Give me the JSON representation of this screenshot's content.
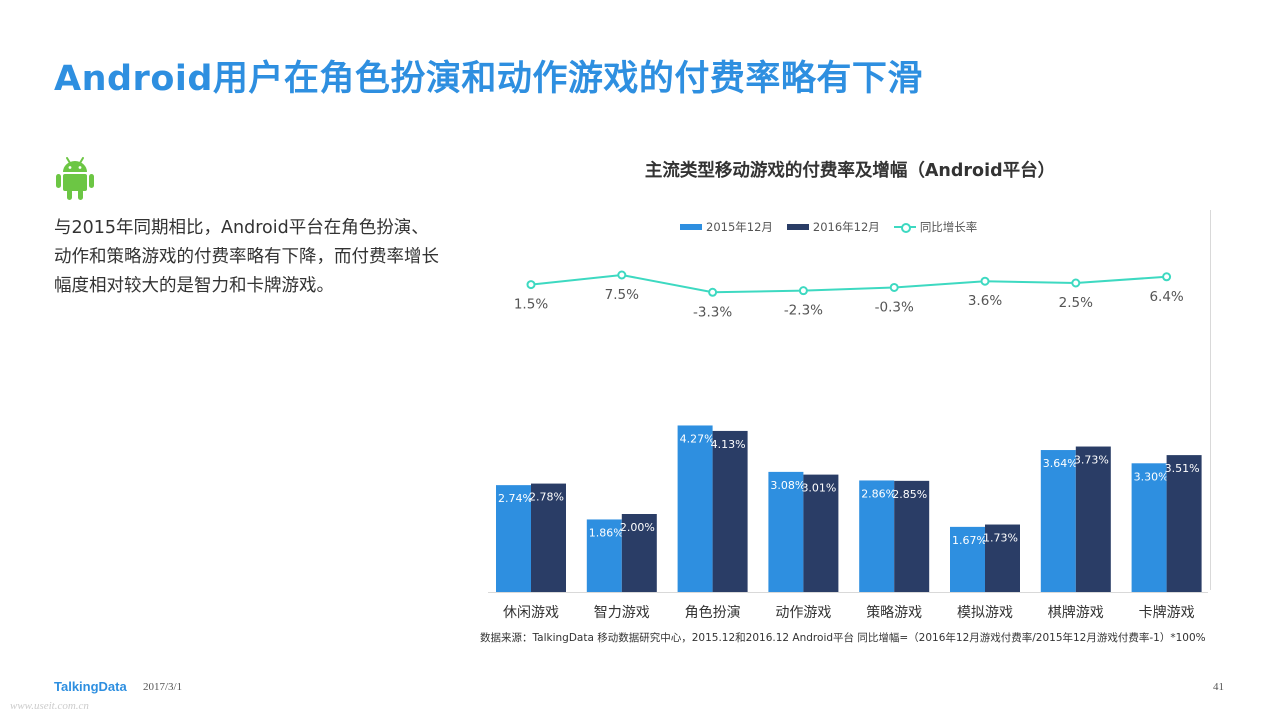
{
  "page": {
    "title": "Android用户在角色扮演和动作游戏的付费率略有下滑",
    "body_text": "与2015年同期相比，Android平台在角色扮演、动作和策略游戏的付费率略有下降，而付费率增长幅度相对较大的是智力和卡牌游戏。",
    "android_icon": "android-robot-icon",
    "source_note": "数据来源：TalkingData 移动数据研究中心，2015.12和2016.12 Android平台 同比增幅=（2016年12月游戏付费率/2015年12月游戏付费率-1）*100%",
    "brand": "TalkingData",
    "date": "2017/3/1",
    "page_number": "41",
    "watermark": "www.useit.com.cn"
  },
  "colors": {
    "title": "#2e8fe0",
    "series_2015": "#2e8fe0",
    "series_2016": "#2a3d66",
    "growth_line": "#3dd9c1",
    "android_green": "#6cc644"
  },
  "chart_data": {
    "type": "bar",
    "title": "主流类型移动游戏的付费率及增幅（Android平台）",
    "categories": [
      "休闲游戏",
      "智力游戏",
      "角色扮演",
      "动作游戏",
      "策略游戏",
      "模拟游戏",
      "棋牌游戏",
      "卡牌游戏"
    ],
    "series": [
      {
        "name": "2015年12月",
        "values": [
          2.74,
          1.86,
          4.27,
          3.08,
          2.86,
          1.67,
          3.64,
          3.3
        ],
        "labels": [
          "2.74%",
          "1.86%",
          "4.27%",
          "3.08%",
          "2.86%",
          "1.67%",
          "3.64%",
          "3.30%"
        ]
      },
      {
        "name": "2016年12月",
        "values": [
          2.78,
          2.0,
          4.13,
          3.01,
          2.85,
          1.73,
          3.73,
          3.51
        ],
        "labels": [
          "2.78%",
          "2.00%",
          "4.13%",
          "3.01%",
          "2.85%",
          "1.73%",
          "3.73%",
          "3.51%"
        ]
      }
    ],
    "line_series": {
      "name": "同比增长率",
      "values": [
        1.5,
        7.5,
        -3.3,
        -2.3,
        -0.3,
        3.6,
        2.5,
        6.4
      ],
      "labels": [
        "1.5%",
        "7.5%",
        "-3.3%",
        "-2.3%",
        "-0.3%",
        "3.6%",
        "2.5%",
        "6.4%"
      ]
    },
    "ylim": [
      0,
      5
    ],
    "line_ylim": [
      -10,
      10
    ],
    "legend": "top",
    "grid": false
  }
}
